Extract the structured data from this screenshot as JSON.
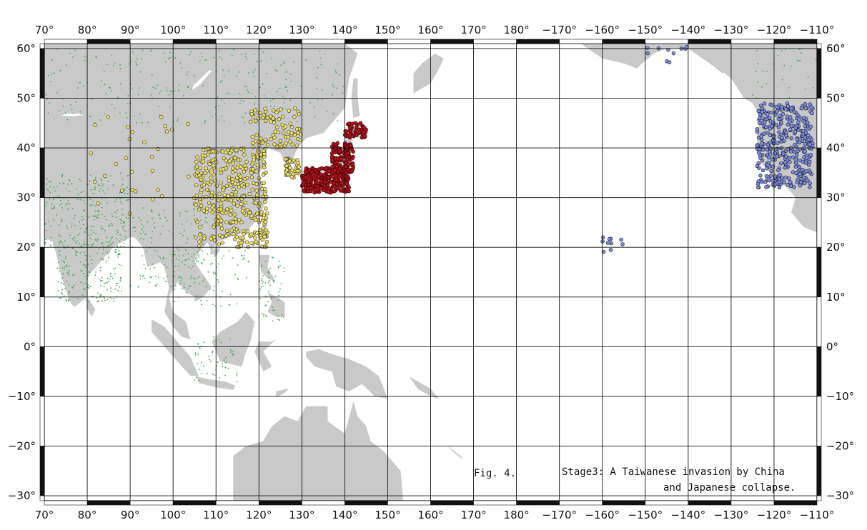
{
  "map": {
    "lon_range": [
      70,
      250
    ],
    "lat_range": [
      -31,
      61
    ],
    "lon_ticks": [
      "70°",
      "80°",
      "90°",
      "100°",
      "110°",
      "120°",
      "130°",
      "140°",
      "150°",
      "160°",
      "170°",
      "180°",
      "−170°",
      "−160°",
      "−150°",
      "−140°",
      "−130°",
      "−120°",
      "−110°"
    ],
    "lat_ticks": [
      "60°",
      "50°",
      "40°",
      "30°",
      "20°",
      "10°",
      "0°",
      "−10°",
      "−20°",
      "−30°"
    ],
    "land_color": "#c9c9c9",
    "ocean_color": "#ffffff",
    "grid": true
  },
  "layers": [
    {
      "name": "minor-settlements",
      "color": "#3aa84a"
    },
    {
      "name": "china-sphere",
      "color": "#f2e35a"
    },
    {
      "name": "japan",
      "color": "#b5121b"
    },
    {
      "name": "us-west",
      "color": "#7f8fe0"
    }
  ],
  "captions": {
    "figure": "Fig. 4.",
    "line1": "Stage3: A Taiwanese invasion by China",
    "line2": "and Japanese collapse."
  }
}
